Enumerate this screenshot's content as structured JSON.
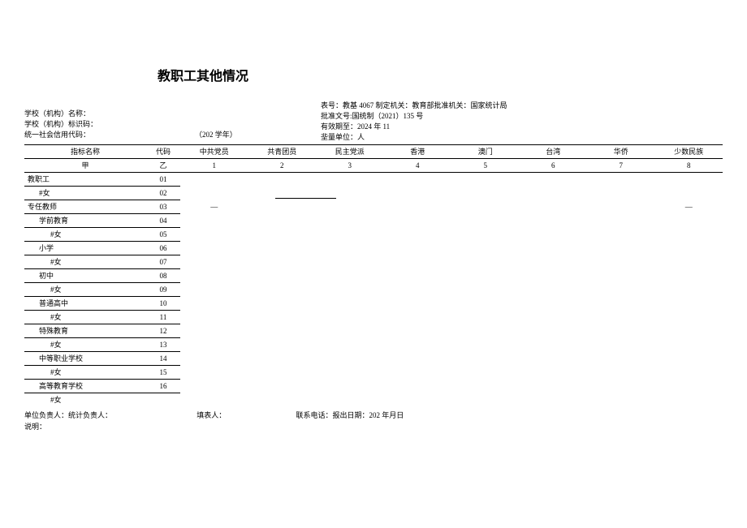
{
  "title": "教职工其他情况",
  "header": {
    "right_line1": "表号：教基 4067 制定机关：教育部批准机关：国家统计局",
    "right_line2": "批准文号:国统制（2021）135 号",
    "right_line3": "有效期至：2024 年 11",
    "right_line4": "㘳量单位：人",
    "left_line1": "学校（机构）名称：",
    "left_line2": "学校（机构）标识码：",
    "left_line3": "统一社会信用代码：",
    "academic_year": "（202 学年）"
  },
  "columns": {
    "name": "指标名称",
    "code": "代码",
    "c1": "中共党员",
    "c2": "共青团员",
    "c3": "民主党派",
    "c4": "香港",
    "c5": "澳门",
    "c6": "台湾",
    "c7": "华侨",
    "c8": "少数民族"
  },
  "subheader": {
    "name": "甲",
    "code": "乙",
    "c1": "1",
    "c2": "2",
    "c3": "3",
    "c4": "4",
    "c5": "5",
    "c6": "6",
    "c7": "7",
    "c8": "8"
  },
  "rows": [
    {
      "name": "教职工",
      "code": "01",
      "underline": "both",
      "indent": 0
    },
    {
      "name": "#女",
      "code": "02",
      "underline": "both",
      "indent": 1
    },
    {
      "name": "专任教师",
      "code": "03",
      "underline": "both",
      "indent": 0,
      "dash_c1": "—",
      "dash_c8": "—",
      "dash_c2_line": true
    },
    {
      "name": "学前教育",
      "code": "04",
      "underline": "both",
      "indent": 1
    },
    {
      "name": "#女",
      "code": "05",
      "underline": "both",
      "indent": 2
    },
    {
      "name": "小学",
      "code": "06",
      "underline": "both",
      "indent": 1
    },
    {
      "name": "#女",
      "code": "07",
      "underline": "both",
      "indent": 2
    },
    {
      "name": "初中",
      "code": "08",
      "underline": "both",
      "indent": 1
    },
    {
      "name": "#女",
      "code": "09",
      "underline": "both",
      "indent": 2
    },
    {
      "name": "普通高中",
      "code": "10",
      "underline": "both",
      "indent": 1
    },
    {
      "name": "#女",
      "code": "11",
      "underline": "both",
      "indent": 2
    },
    {
      "name": "特殊教育",
      "code": "12",
      "underline": "both",
      "indent": 1
    },
    {
      "name": "#女",
      "code": "13",
      "underline": "both",
      "indent": 2
    },
    {
      "name": "中等职业学校",
      "code": "14",
      "underline": "both",
      "indent": 1
    },
    {
      "name": "#女",
      "code": "15",
      "underline": "both",
      "indent": 2
    },
    {
      "name": "高等教育学校",
      "code": "16",
      "underline": "both",
      "indent": 1
    },
    {
      "name": "#女",
      "code": "",
      "underline": "none",
      "indent": 2
    }
  ],
  "footer": {
    "line1_a": "单位负责人：统计负责人：",
    "line1_b": "填表人：",
    "line1_c": "联系电话：报出日期：202 年月日",
    "line2": "说明："
  }
}
